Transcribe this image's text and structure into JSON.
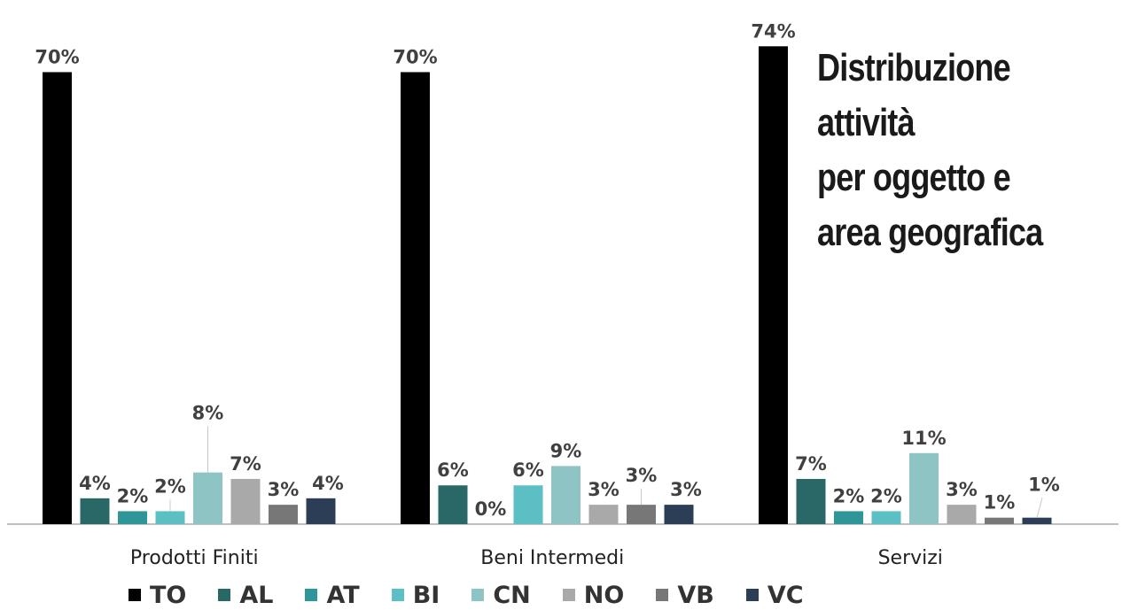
{
  "title_lines": [
    "Distribuzione",
    "attività",
    "per oggetto e",
    "area geografica"
  ],
  "colors": {
    "TO": "#000000",
    "AL": "#2a6767",
    "AT": "#2e9698",
    "BI": "#5cbfc4",
    "CN": "#8ec4c4",
    "NO": "#a9a9a9",
    "VB": "#777777",
    "VC": "#2c3e56"
  },
  "chart_data": {
    "type": "bar",
    "categories": [
      "Prodotti Finiti",
      "Beni Intermedi",
      "Servizi"
    ],
    "series": [
      {
        "name": "TO",
        "values": [
          70,
          70,
          74
        ],
        "labels": [
          "70%",
          "70%",
          "74%"
        ]
      },
      {
        "name": "AL",
        "values": [
          4,
          6,
          7
        ],
        "labels": [
          "4%",
          "6%",
          "7%"
        ]
      },
      {
        "name": "AT",
        "values": [
          2,
          0,
          2
        ],
        "labels": [
          "2%",
          "0%",
          "2%"
        ]
      },
      {
        "name": "BI",
        "values": [
          2,
          6,
          2
        ],
        "labels": [
          "2%",
          "6%",
          "2%"
        ]
      },
      {
        "name": "CN",
        "values": [
          8,
          9,
          11
        ],
        "labels": [
          "8%",
          "9%",
          "11%"
        ]
      },
      {
        "name": "NO",
        "values": [
          7,
          3,
          3
        ],
        "labels": [
          "7%",
          "3%",
          "3%"
        ]
      },
      {
        "name": "VB",
        "values": [
          3,
          3,
          1
        ],
        "labels": [
          "3%",
          "3%",
          "1%"
        ]
      },
      {
        "name": "VC",
        "values": [
          4,
          3,
          1
        ],
        "labels": [
          "4%",
          "3%",
          "1%"
        ]
      }
    ],
    "ylim": [
      0,
      75
    ],
    "grid": false,
    "legend": "bottom"
  }
}
